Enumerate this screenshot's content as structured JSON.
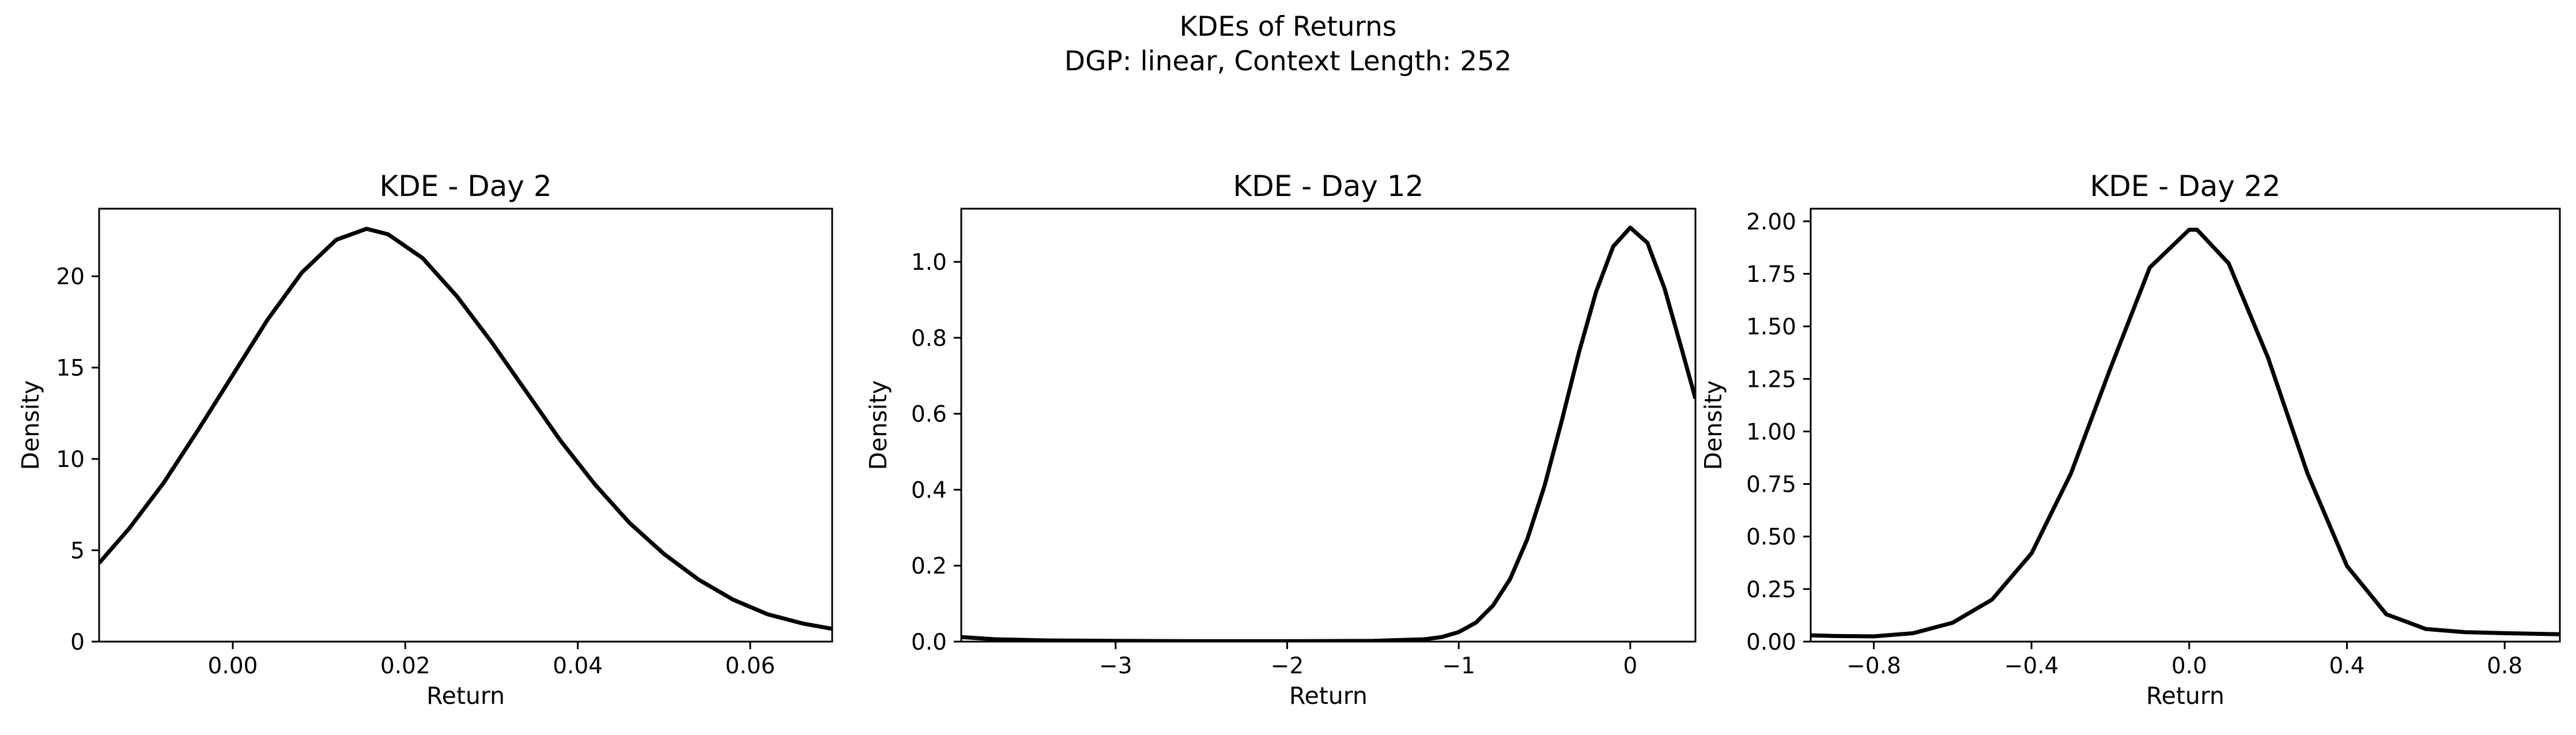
{
  "figure": {
    "suptitle_line1": "KDEs of Returns",
    "suptitle_line2": "DGP: linear, Context Length: 252"
  },
  "chart_data": [
    {
      "type": "line",
      "title": "KDE - Day 2",
      "xlabel": "Return",
      "ylabel": "Density",
      "xlim": [
        -0.0155,
        0.0695
      ],
      "ylim": [
        0,
        23.7
      ],
      "xticks": [
        0.0,
        0.02,
        0.04,
        0.06
      ],
      "xtick_labels": [
        "0.00",
        "0.02",
        "0.04",
        "0.06"
      ],
      "yticks": [
        0,
        5,
        10,
        15,
        20
      ],
      "ytick_labels": [
        "0",
        "5",
        "10",
        "15",
        "20"
      ],
      "line_color": "#000000",
      "series": [
        {
          "x": [
            -0.0155,
            -0.012,
            -0.008,
            -0.004,
            0.0,
            0.004,
            0.008,
            0.012,
            0.0155,
            0.018,
            0.022,
            0.026,
            0.03,
            0.034,
            0.038,
            0.042,
            0.046,
            0.05,
            0.054,
            0.058,
            0.062,
            0.066,
            0.0695
          ],
          "y": [
            4.3,
            6.2,
            8.7,
            11.6,
            14.6,
            17.6,
            20.2,
            22.0,
            22.6,
            22.3,
            21.0,
            18.9,
            16.4,
            13.7,
            11.0,
            8.6,
            6.5,
            4.8,
            3.4,
            2.3,
            1.5,
            1.0,
            0.7
          ]
        }
      ]
    },
    {
      "type": "line",
      "title": "KDE - Day 12",
      "xlabel": "Return",
      "ylabel": "Density",
      "xlim": [
        -3.9,
        0.38
      ],
      "ylim": [
        0,
        1.14
      ],
      "xticks": [
        -3,
        -2,
        -1,
        0
      ],
      "xtick_labels": [
        "−3",
        "−2",
        "−1",
        "0"
      ],
      "yticks": [
        0.0,
        0.2,
        0.4,
        0.6,
        0.8,
        1.0
      ],
      "ytick_labels": [
        "0.0",
        "0.2",
        "0.4",
        "0.6",
        "0.8",
        "1.0"
      ],
      "line_color": "#000000",
      "series": [
        {
          "x": [
            -3.9,
            -3.7,
            -3.4,
            -3.0,
            -2.5,
            -2.0,
            -1.5,
            -1.2,
            -1.1,
            -1.0,
            -0.9,
            -0.8,
            -0.7,
            -0.6,
            -0.5,
            -0.4,
            -0.3,
            -0.2,
            -0.1,
            0.0,
            0.1,
            0.2,
            0.3,
            0.38
          ],
          "y": [
            0.012,
            0.006,
            0.003,
            0.002,
            0.001,
            0.001,
            0.002,
            0.006,
            0.012,
            0.025,
            0.05,
            0.095,
            0.165,
            0.27,
            0.41,
            0.58,
            0.76,
            0.92,
            1.04,
            1.09,
            1.05,
            0.93,
            0.77,
            0.64
          ]
        }
      ]
    },
    {
      "type": "line",
      "title": "KDE - Day 22",
      "xlabel": "Return",
      "ylabel": "Density",
      "xlim": [
        -0.96,
        0.94
      ],
      "ylim": [
        0,
        2.06
      ],
      "xticks": [
        -0.8,
        -0.4,
        0.0,
        0.4,
        0.8
      ],
      "xtick_labels": [
        "−0.8",
        "−0.4",
        "0.0",
        "0.4",
        "0.8"
      ],
      "yticks": [
        0.0,
        0.25,
        0.5,
        0.75,
        1.0,
        1.25,
        1.5,
        1.75,
        2.0
      ],
      "ytick_labels": [
        "0.00",
        "0.25",
        "0.50",
        "0.75",
        "1.00",
        "1.25",
        "1.50",
        "1.75",
        "2.00"
      ],
      "line_color": "#000000",
      "series": [
        {
          "x": [
            -0.96,
            -0.9,
            -0.8,
            -0.7,
            -0.6,
            -0.5,
            -0.4,
            -0.3,
            -0.2,
            -0.1,
            0.0,
            0.02,
            0.1,
            0.2,
            0.3,
            0.4,
            0.5,
            0.6,
            0.7,
            0.8,
            0.94
          ],
          "y": [
            0.03,
            0.027,
            0.025,
            0.04,
            0.09,
            0.2,
            0.42,
            0.8,
            1.3,
            1.78,
            1.96,
            1.96,
            1.8,
            1.35,
            0.8,
            0.36,
            0.13,
            0.06,
            0.045,
            0.04,
            0.035
          ]
        }
      ]
    }
  ]
}
